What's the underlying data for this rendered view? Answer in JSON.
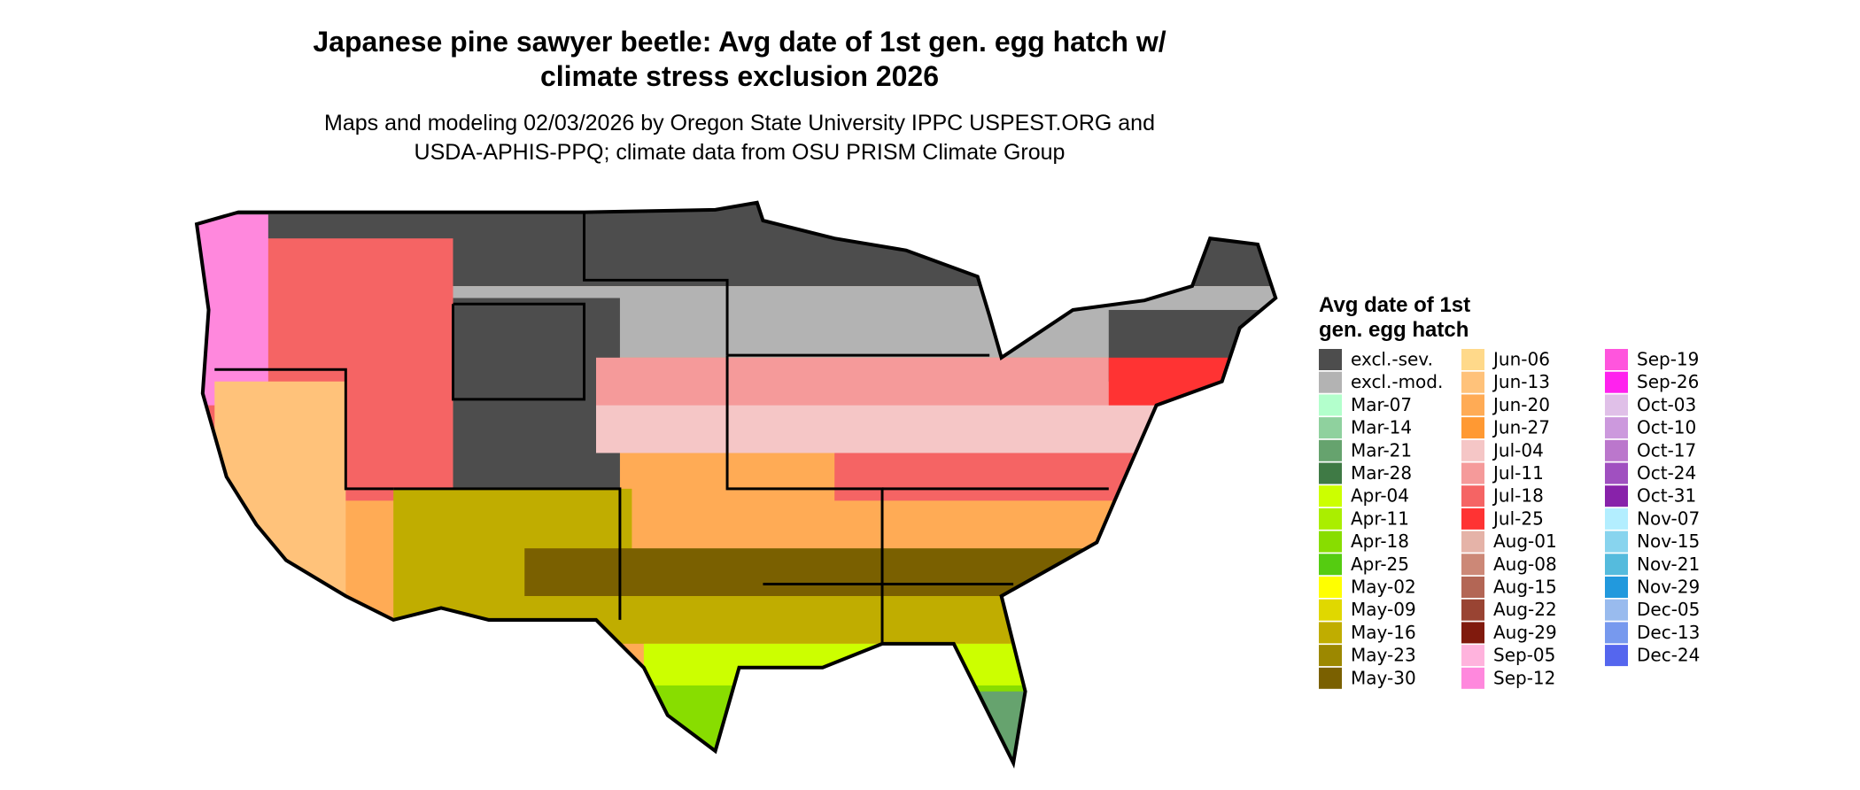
{
  "title_lines": [
    "Japanese pine sawyer beetle: Avg date of 1st gen. egg hatch w/",
    "climate stress exclusion 2026"
  ],
  "subtitle_lines": [
    "Maps and modeling 02/03/2026 by Oregon State University IPPC USPEST.ORG and",
    "USDA-APHIS-PPQ; climate data from OSU PRISM Climate Group"
  ],
  "legend": {
    "title_lines": [
      "Avg date of 1st",
      "gen. egg hatch"
    ],
    "items": [
      {
        "label": "excl.-sev.",
        "color": "#4d4d4d"
      },
      {
        "label": "excl.-mod.",
        "color": "#b3b3b3"
      },
      {
        "label": "Mar-07",
        "color": "#b3ffcc"
      },
      {
        "label": "Mar-14",
        "color": "#8fd19e"
      },
      {
        "label": "Mar-21",
        "color": "#66a36e"
      },
      {
        "label": "Mar-28",
        "color": "#3f7a45"
      },
      {
        "label": "Apr-04",
        "color": "#ccff00"
      },
      {
        "label": "Apr-11",
        "color": "#aaee00"
      },
      {
        "label": "Apr-18",
        "color": "#88dd00"
      },
      {
        "label": "Apr-25",
        "color": "#55cc11"
      },
      {
        "label": "May-02",
        "color": "#ffff00"
      },
      {
        "label": "May-09",
        "color": "#e0d800"
      },
      {
        "label": "May-16",
        "color": "#c0ad00"
      },
      {
        "label": "May-23",
        "color": "#9c8800"
      },
      {
        "label": "May-30",
        "color": "#7a6000"
      },
      {
        "label": "Jun-06",
        "color": "#ffd98a"
      },
      {
        "label": "Jun-13",
        "color": "#ffc27a"
      },
      {
        "label": "Jun-20",
        "color": "#ffab55"
      },
      {
        "label": "Jun-27",
        "color": "#ff9933"
      },
      {
        "label": "Jul-04",
        "color": "#f5c6c6"
      },
      {
        "label": "Jul-11",
        "color": "#f59a9a"
      },
      {
        "label": "Jul-18",
        "color": "#f56464"
      },
      {
        "label": "Jul-25",
        "color": "#ff3333"
      },
      {
        "label": "Aug-01",
        "color": "#e5b3a8"
      },
      {
        "label": "Aug-08",
        "color": "#cc8877"
      },
      {
        "label": "Aug-15",
        "color": "#b36655"
      },
      {
        "label": "Aug-22",
        "color": "#994433"
      },
      {
        "label": "Aug-29",
        "color": "#801a0d"
      },
      {
        "label": "Sep-05",
        "color": "#ffb3dd"
      },
      {
        "label": "Sep-12",
        "color": "#ff88dd"
      },
      {
        "label": "Sep-19",
        "color": "#ff55dd"
      },
      {
        "label": "Sep-26",
        "color": "#ff22ee"
      },
      {
        "label": "Oct-03",
        "color": "#e0c0e8"
      },
      {
        "label": "Oct-10",
        "color": "#cc99dd"
      },
      {
        "label": "Oct-17",
        "color": "#bb77cc"
      },
      {
        "label": "Oct-24",
        "color": "#a050c0"
      },
      {
        "label": "Oct-31",
        "color": "#8822aa"
      },
      {
        "label": "Nov-07",
        "color": "#b3eeff"
      },
      {
        "label": "Nov-15",
        "color": "#88d4ee"
      },
      {
        "label": "Nov-21",
        "color": "#55bbdd"
      },
      {
        "label": "Nov-29",
        "color": "#2299dd"
      },
      {
        "label": "Dec-05",
        "color": "#99bbee"
      },
      {
        "label": "Dec-13",
        "color": "#7799ee"
      },
      {
        "label": "Dec-24",
        "color": "#5566ee"
      }
    ]
  }
}
